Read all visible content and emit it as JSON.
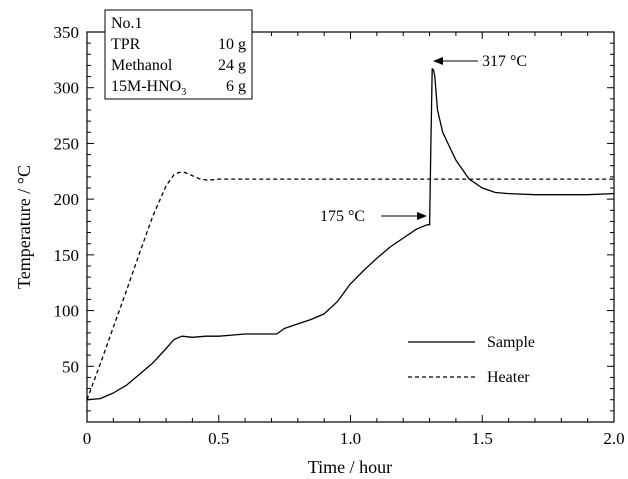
{
  "chart_data": {
    "type": "line",
    "xlabel": "Time / hour",
    "ylabel": "Temperature / °C",
    "xlim": [
      0,
      2.0
    ],
    "ylim": [
      0,
      350
    ],
    "x_ticks": [
      0,
      0.5,
      1.0,
      1.5,
      2.0
    ],
    "x_tick_labels": [
      "0",
      "0.5",
      "1.0",
      "1.5",
      "2.0"
    ],
    "y_ticks": [
      50,
      100,
      150,
      200,
      250,
      300,
      350
    ],
    "y_tick_labels": [
      "50",
      "100",
      "150",
      "200",
      "250",
      "300",
      "350"
    ],
    "grid": false,
    "legend_position": "bottom-right",
    "info_box": {
      "title": "No.1",
      "rows": [
        {
          "name": "TPR",
          "amount": "10 g"
        },
        {
          "name": "Methanol",
          "amount": "24 g"
        },
        {
          "name": "15M-HNO",
          "name_sub": "3",
          "amount": "6 g"
        }
      ]
    },
    "annotations": [
      {
        "text": "175 °C",
        "x": 1.3,
        "y": 175,
        "arrow_from": "left"
      },
      {
        "text": "317 °C",
        "x": 1.31,
        "y": 317,
        "arrow_from": "right"
      }
    ],
    "series": [
      {
        "name": "Sample",
        "style": "solid",
        "x": [
          0,
          0.05,
          0.1,
          0.15,
          0.2,
          0.25,
          0.3,
          0.33,
          0.36,
          0.4,
          0.45,
          0.5,
          0.55,
          0.6,
          0.65,
          0.7,
          0.72,
          0.75,
          0.8,
          0.85,
          0.9,
          0.95,
          1.0,
          1.05,
          1.1,
          1.15,
          1.2,
          1.25,
          1.29,
          1.3,
          1.305,
          1.31,
          1.315,
          1.32,
          1.33,
          1.35,
          1.38,
          1.4,
          1.45,
          1.5,
          1.55,
          1.6,
          1.7,
          1.8,
          1.9,
          2.0
        ],
        "values": [
          20,
          21,
          26,
          33,
          43,
          53,
          66,
          74,
          77,
          76,
          77,
          77,
          78,
          79,
          79,
          79,
          79,
          84,
          88,
          92,
          97,
          108,
          124,
          136,
          147,
          157,
          165,
          173,
          177,
          177,
          250,
          317,
          316,
          310,
          280,
          260,
          245,
          235,
          218,
          210,
          206,
          205,
          204,
          204,
          204,
          205
        ]
      },
      {
        "name": "Heater",
        "style": "dashed",
        "x": [
          0,
          0.05,
          0.1,
          0.15,
          0.2,
          0.25,
          0.3,
          0.33,
          0.35,
          0.37,
          0.4,
          0.43,
          0.46,
          0.5,
          0.6,
          0.8,
          1.0,
          1.2,
          1.4,
          1.6,
          1.8,
          2.0
        ],
        "values": [
          20,
          52,
          85,
          118,
          152,
          185,
          212,
          222,
          224,
          224,
          221,
          218,
          217,
          218,
          218,
          218,
          218,
          218,
          218,
          218,
          218,
          218
        ]
      }
    ]
  }
}
